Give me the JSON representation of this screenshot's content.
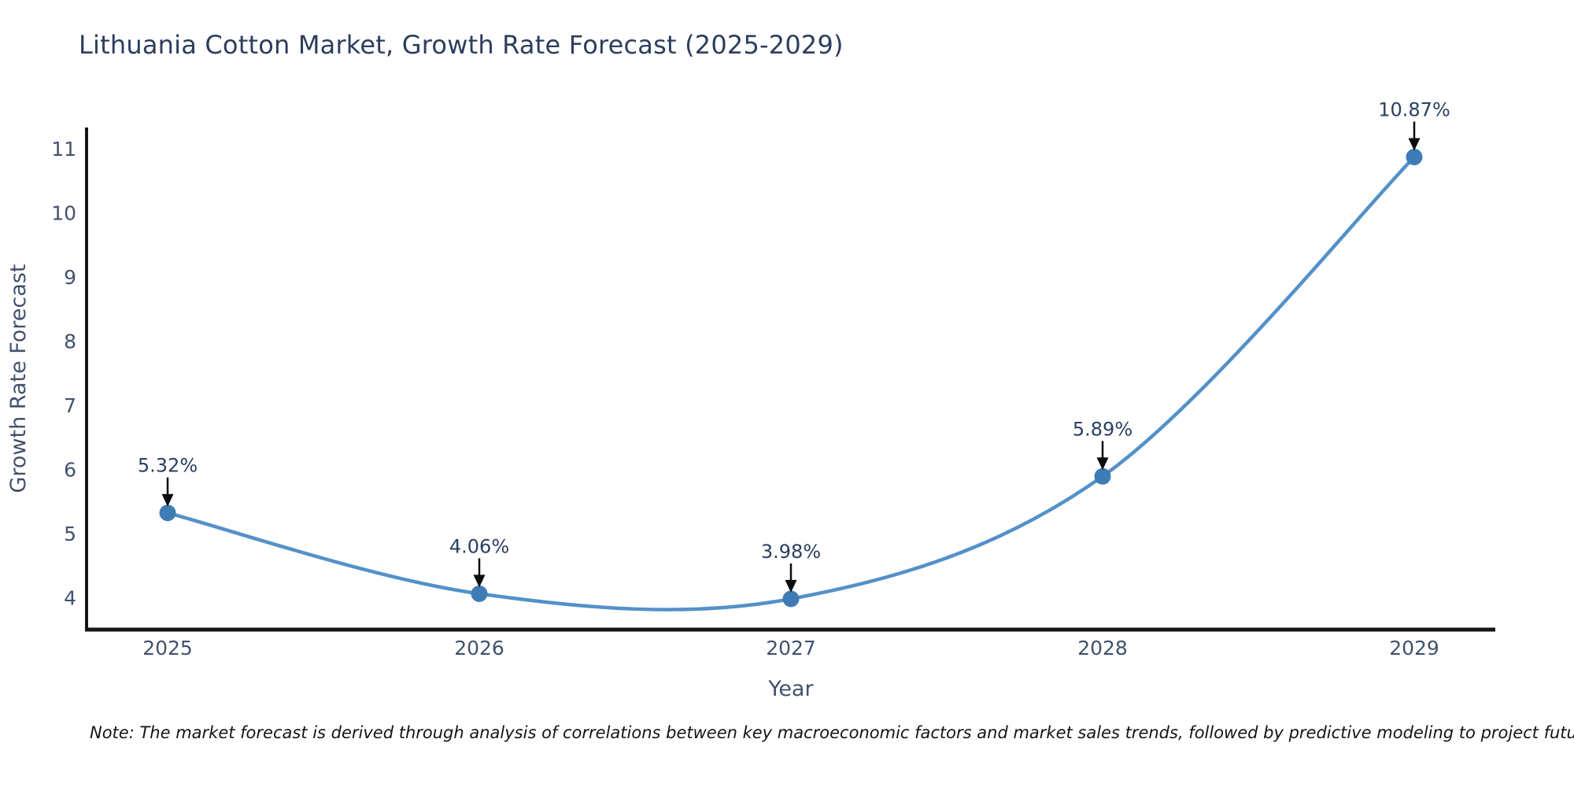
{
  "note": "Note: The market forecast is derived through analysis of correlations between key macroeconomic factors and market sales trends, followed by predictive modeling to project future sales",
  "chart_data": {
    "type": "line",
    "title": "Lithuania Cotton Market, Growth Rate Forecast (2025-2029)",
    "xlabel": "Year",
    "ylabel": "Growth Rate Forecast",
    "x": [
      2025,
      2026,
      2027,
      2028,
      2029
    ],
    "y": [
      5.32,
      4.06,
      3.98,
      5.89,
      10.87
    ],
    "point_labels": [
      "5.32%",
      "4.06%",
      "3.98%",
      "5.89%",
      "10.87%"
    ],
    "x_ticks": [
      "2025",
      "2026",
      "2027",
      "2028",
      "2029"
    ],
    "y_ticks": [
      4,
      5,
      6,
      7,
      8,
      9,
      10,
      11
    ],
    "xlim": [
      2024.74,
      2029.26
    ],
    "ylim": [
      3.5,
      11.33
    ],
    "line_shape": "spline",
    "grid": false,
    "legend": "none",
    "colors": {
      "line": "#5391c8",
      "marker": "#3f7cb5",
      "axis": "#161616",
      "arrow": "#0d0d0d",
      "title": "#2c3e5d",
      "tick": "#42516d",
      "annotation": "#2a3f5f",
      "note": "#141414",
      "background": "#ffffff"
    }
  }
}
